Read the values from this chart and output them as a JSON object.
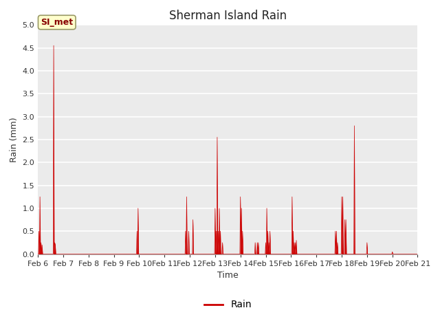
{
  "title": "Sherman Island Rain",
  "xlabel": "Time",
  "ylabel": "Rain (mm)",
  "legend_label": "Rain",
  "legend_color": "#cc0000",
  "line_color": "#cc0000",
  "plot_bg_color": "#ebebeb",
  "fig_bg_color": "#ffffff",
  "ylim": [
    0,
    5.0
  ],
  "yticks": [
    0.0,
    0.5,
    1.0,
    1.5,
    2.0,
    2.5,
    3.0,
    3.5,
    4.0,
    4.5,
    5.0
  ],
  "annotation_box_text": "SI_met",
  "annotation_box_facecolor": "#ffffcc",
  "annotation_box_edgecolor": "#999966",
  "annotation_text_color": "#880000",
  "rain_events": [
    [
      1,
      0.5
    ],
    [
      2,
      1.25
    ],
    [
      3,
      0.25
    ],
    [
      4,
      0.2
    ],
    [
      15,
      4.55
    ],
    [
      16,
      0.25
    ],
    [
      16.5,
      0.2
    ],
    [
      94,
      0.5
    ],
    [
      95,
      1.0
    ],
    [
      140,
      0.5
    ],
    [
      141,
      1.25
    ],
    [
      143,
      0.5
    ],
    [
      147,
      0.75
    ],
    [
      168,
      1.0
    ],
    [
      169,
      0.5
    ],
    [
      170,
      2.55
    ],
    [
      171,
      0.5
    ],
    [
      172,
      1.0
    ],
    [
      173,
      0.5
    ],
    [
      175,
      0.25
    ],
    [
      192,
      1.25
    ],
    [
      193,
      1.0
    ],
    [
      194,
      0.5
    ],
    [
      206,
      0.25
    ],
    [
      208,
      0.25
    ],
    [
      209,
      0.25
    ],
    [
      216,
      0.25
    ],
    [
      217,
      1.0
    ],
    [
      218,
      0.5
    ],
    [
      219,
      0.25
    ],
    [
      220,
      0.5
    ],
    [
      241,
      1.25
    ],
    [
      242,
      0.5
    ],
    [
      243,
      0.25
    ],
    [
      244,
      0.25
    ],
    [
      245,
      0.3
    ],
    [
      282,
      0.5
    ],
    [
      283,
      0.5
    ],
    [
      284,
      0.25
    ],
    [
      288,
      1.25
    ],
    [
      289,
      1.25
    ],
    [
      291,
      0.75
    ],
    [
      292,
      0.75
    ],
    [
      300,
      2.8
    ],
    [
      312,
      0.25
    ],
    [
      336,
      0.05
    ]
  ],
  "xtick_positions": [
    0,
    24,
    48,
    72,
    96,
    120,
    144,
    168,
    192,
    216,
    240,
    264,
    288,
    312,
    336,
    360
  ],
  "xtick_labels": [
    "Feb 6",
    "Feb 7",
    "Feb 8",
    "Feb 9",
    "Feb 10",
    "Feb 11",
    "Feb 12",
    "Feb 13",
    "Feb 14",
    "Feb 15",
    "Feb 16",
    "Feb 17",
    "Feb 18",
    "Feb 19",
    "Feb 20",
    "Feb 21"
  ],
  "xlim": [
    0,
    360
  ],
  "title_fontsize": 12,
  "axis_label_fontsize": 9,
  "tick_fontsize": 8,
  "grid_color": "#ffffff",
  "grid_linewidth": 1.2,
  "spine_color": "#aaaaaa"
}
